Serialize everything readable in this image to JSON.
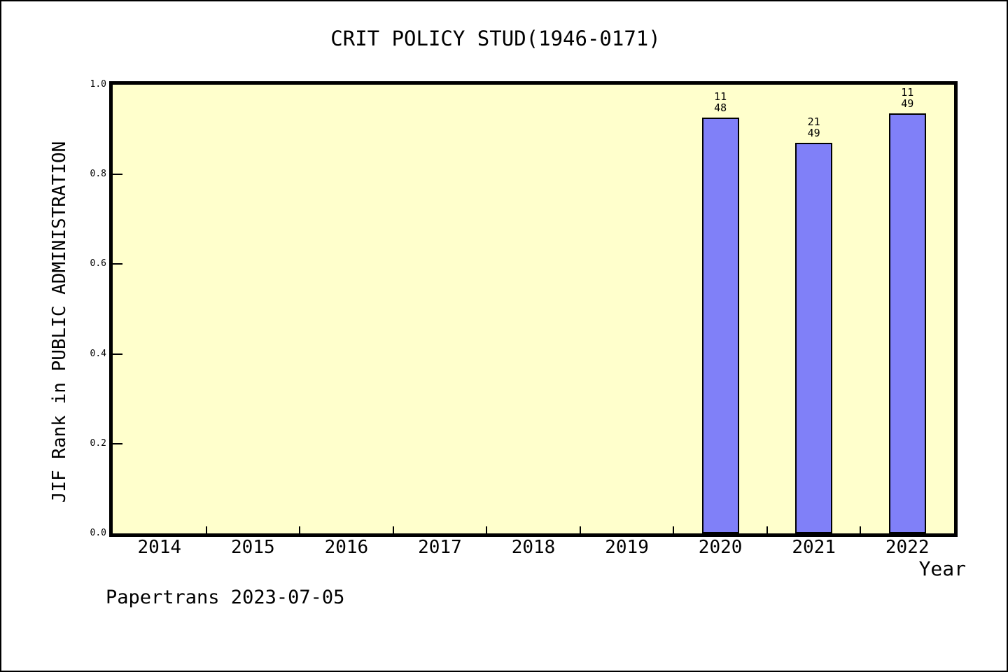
{
  "page": {
    "title": "CRIT POLICY STUD(1946-0171)",
    "footer": "Papertrans 2023-07-05"
  },
  "chart_data": {
    "type": "bar",
    "title": "CRIT POLICY STUD(1946-0171)",
    "xlabel": "Year",
    "ylabel": "JIF Rank in PUBLIC ADMINISTRATION",
    "categories": [
      "2014",
      "2015",
      "2016",
      "2017",
      "2018",
      "2019",
      "2020",
      "2021",
      "2022"
    ],
    "values": [
      null,
      null,
      null,
      null,
      null,
      null,
      0.927,
      0.871,
      0.936
    ],
    "bar_annotations": [
      {
        "category": "2020",
        "rank": "11",
        "total": "48"
      },
      {
        "category": "2021",
        "rank": "21",
        "total": "49"
      },
      {
        "category": "2022",
        "rank": "11",
        "total": "49"
      }
    ],
    "ylim": [
      0.0,
      1.0
    ],
    "yticks": [
      "0.0",
      "0.2",
      "0.4",
      "0.6",
      "0.8",
      "1.0"
    ],
    "grid": false,
    "legend": null,
    "tick_style": "inward",
    "colors": {
      "bar_fill": "#8080f8",
      "bar_border": "#000000",
      "plot_background": "#ffffcc",
      "page_background": "#ffffff",
      "text": "#000000"
    },
    "watermark": "Papertrans 2023-07-05"
  }
}
